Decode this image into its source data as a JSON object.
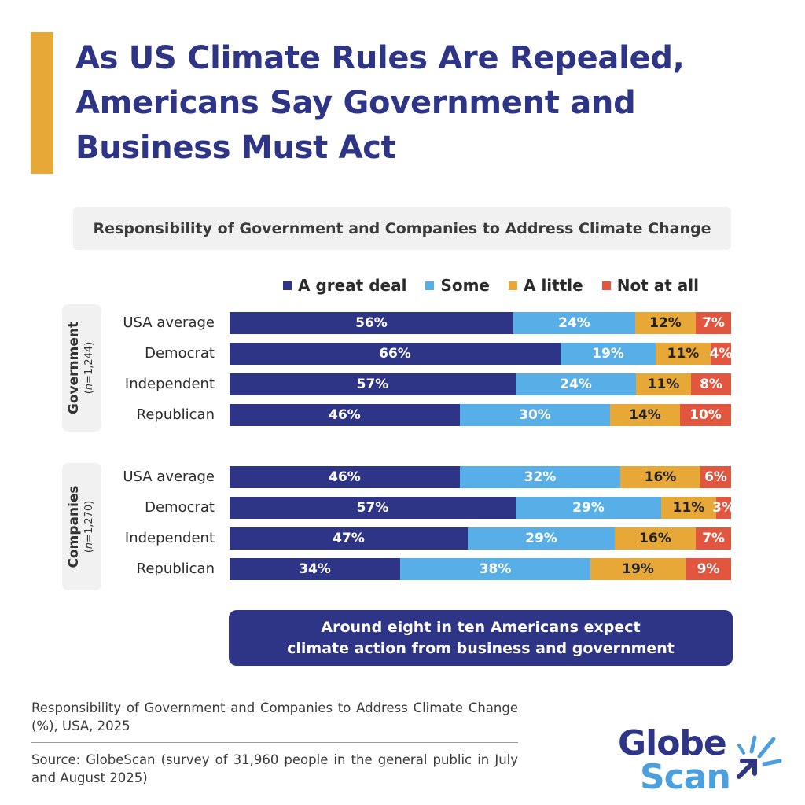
{
  "title": "As US Climate Rules Are Repealed, Americans Say Government and Business Must Act",
  "chart_data": {
    "type": "bar",
    "orientation": "horizontal",
    "stacked": true,
    "title": "Responsibility of Government and Companies to Address Climate Change",
    "unit": "%",
    "legend": [
      {
        "name": "A great deal",
        "color": "#2e3587"
      },
      {
        "name": "Some",
        "color": "#58aee6"
      },
      {
        "name": "A little",
        "color": "#e8a838"
      },
      {
        "name": "Not at all",
        "color": "#e2553f"
      }
    ],
    "legend_position": "top",
    "groups": [
      {
        "name": "Government",
        "n": "(n=1,244)",
        "rows": [
          {
            "label": "USA average",
            "values": [
              56,
              24,
              12,
              7
            ]
          },
          {
            "label": "Democrat",
            "values": [
              66,
              19,
              11,
              4
            ]
          },
          {
            "label": "Independent",
            "values": [
              57,
              24,
              11,
              8
            ]
          },
          {
            "label": "Republican",
            "values": [
              46,
              30,
              14,
              10
            ]
          }
        ]
      },
      {
        "name": "Companies",
        "n": "(n=1,270)",
        "rows": [
          {
            "label": "USA average",
            "values": [
              46,
              32,
              16,
              6
            ]
          },
          {
            "label": "Democrat",
            "values": [
              57,
              29,
              11,
              3
            ]
          },
          {
            "label": "Independent",
            "values": [
              47,
              29,
              16,
              7
            ]
          },
          {
            "label": "Republican",
            "values": [
              34,
              38,
              19,
              9
            ]
          }
        ]
      }
    ]
  },
  "callout": {
    "line1": "Around eight in ten Americans expect",
    "line2": "climate action from business and government"
  },
  "footer": {
    "caption": "Responsibility of Government and Companies to Address Climate Change (%), USA, 2025",
    "source": "Source: GlobeScan (survey of 31,960 people in the general public in July and August 2025)"
  },
  "logo": {
    "line1": "Globe",
    "line2": "Scan",
    "icon": "globescan-burst-icon"
  }
}
